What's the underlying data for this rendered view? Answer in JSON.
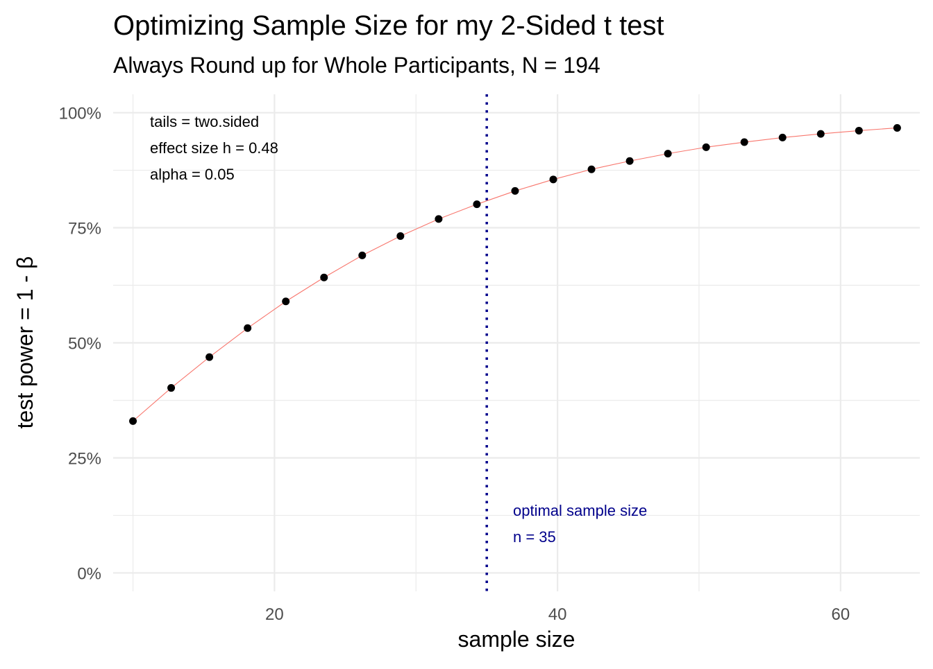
{
  "chart_data": {
    "type": "line",
    "title": "Optimizing Sample Size for my 2-Sided t test",
    "subtitle": "Always Round up for Whole Participants, N = 194",
    "xlabel": "sample size",
    "ylabel": "test power = 1 - β",
    "xlim": [
      8.6,
      65.6
    ],
    "ylim": [
      -0.04,
      1.04
    ],
    "x_ticks": [
      20,
      40,
      60
    ],
    "x_tick_labels": [
      "20",
      "40",
      "60"
    ],
    "y_ticks": [
      0,
      0.25,
      0.5,
      0.75,
      1.0
    ],
    "y_tick_labels": [
      "0%",
      "25%",
      "50%",
      "75%",
      "100%"
    ],
    "grid": true,
    "series": [
      {
        "color": "#f8766d",
        "point_color": "#000000",
        "x": [
          10,
          12.7,
          15.4,
          18.1,
          20.8,
          23.5,
          26.2,
          28.9,
          31.6,
          34.3,
          37.0,
          39.7,
          42.4,
          45.1,
          47.8,
          50.5,
          53.2,
          55.9,
          58.6,
          61.3,
          64.0
        ],
        "y": [
          0.33,
          0.402,
          0.469,
          0.532,
          0.59,
          0.642,
          0.69,
          0.732,
          0.769,
          0.801,
          0.83,
          0.855,
          0.877,
          0.895,
          0.911,
          0.925,
          0.936,
          0.946,
          0.954,
          0.961,
          0.967
        ]
      }
    ],
    "reference_line": {
      "x": 35,
      "color": "#00008b",
      "style": "dotted"
    },
    "annotations": {
      "params": [
        "tails = two.sided",
        "effect size h = 0.48",
        "alpha = 0.05"
      ],
      "optimal": [
        "optimal sample size",
        "n = 35"
      ]
    }
  }
}
